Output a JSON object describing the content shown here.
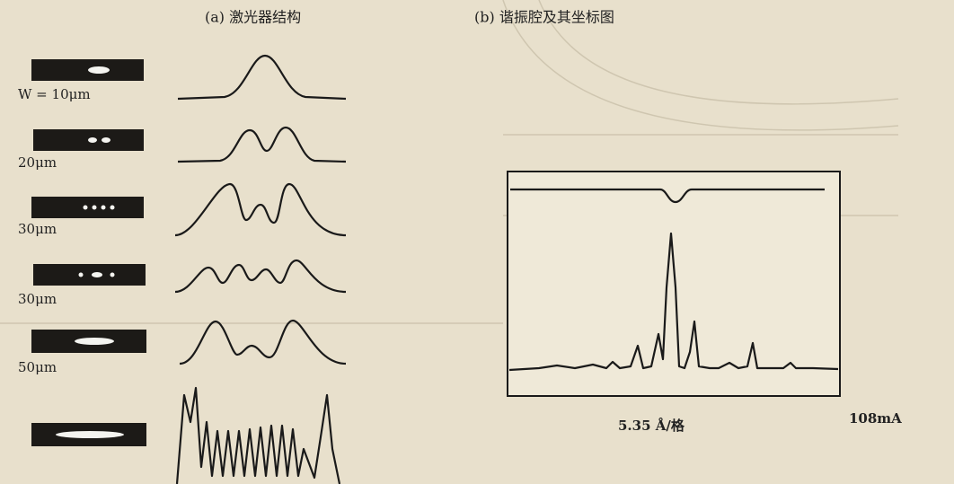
{
  "header": {
    "panel_a": "(a) 激光器结构",
    "panel_b": "(b) 谐振腔及其坐标图"
  },
  "panel_a": {
    "widths": [
      "W = 10μm",
      "20μm",
      "30μm",
      "30μm",
      "50μm"
    ]
  },
  "panel_b": {
    "x_scale": "5.35 Å/格",
    "current": "108mA"
  }
}
